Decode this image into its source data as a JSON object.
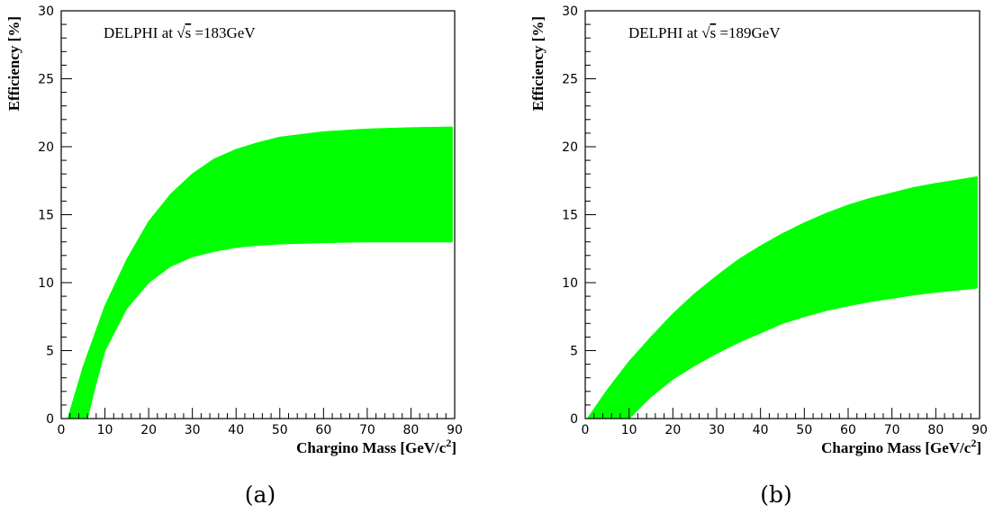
{
  "chart_data": [
    {
      "type": "area",
      "caption": "(a)",
      "annotation": "DELPHI at √s =183GeV",
      "annotation_parts": {
        "pre": "DELPHI at ",
        "sqrt": "√",
        "s": "s",
        "post": " =183GeV"
      },
      "xlabel": "Chargino Mass [GeV/c2]",
      "xlabel_parts": {
        "main": "Chargino Mass [GeV/c",
        "sup": "2",
        "end": "]"
      },
      "ylabel": "Efficiency [%]",
      "xlim": [
        0,
        90
      ],
      "ylim": [
        0,
        30
      ],
      "xticks": [
        0,
        10,
        20,
        30,
        40,
        50,
        60,
        70,
        80,
        90
      ],
      "yticks": [
        0,
        5,
        10,
        15,
        20,
        25,
        30
      ],
      "band_color": "#00ff00",
      "series": [
        {
          "x": [
            1.5,
            5,
            10,
            15,
            20,
            25,
            30,
            35,
            40,
            45,
            50,
            55,
            60,
            70,
            80,
            89.5
          ],
          "values": [
            0,
            3.8,
            8.3,
            11.7,
            14.5,
            16.5,
            18,
            19.1,
            19.8,
            20.3,
            20.7,
            20.9,
            21.1,
            21.3,
            21.4,
            21.45
          ]
        },
        {
          "x": [
            6,
            8,
            10,
            15,
            20,
            25,
            30,
            35,
            40,
            45,
            50,
            55,
            60,
            70,
            80,
            89.5
          ],
          "values": [
            0,
            2.6,
            5,
            8.1,
            10,
            11.2,
            11.9,
            12.3,
            12.6,
            12.75,
            12.85,
            12.9,
            12.95,
            13,
            13,
            13
          ]
        }
      ]
    },
    {
      "type": "area",
      "caption": "(b)",
      "annotation": "DELPHI at √s =189GeV",
      "annotation_parts": {
        "pre": "DELPHI at ",
        "sqrt": "√",
        "s": "s",
        "post": " =189GeV"
      },
      "xlabel": "Chargino Mass [GeV/c2]",
      "xlabel_parts": {
        "main": "Chargino Mass [GeV/c",
        "sup": "2",
        "end": "]"
      },
      "ylabel": "Efficiency [%]",
      "xlim": [
        0,
        90
      ],
      "ylim": [
        0,
        30
      ],
      "xticks": [
        0,
        10,
        20,
        30,
        40,
        50,
        60,
        70,
        80,
        90
      ],
      "yticks": [
        0,
        5,
        10,
        15,
        20,
        25,
        30
      ],
      "band_color": "#00ff00",
      "series": [
        {
          "x": [
            0.5,
            5,
            10,
            15,
            20,
            25,
            30,
            35,
            40,
            45,
            50,
            55,
            60,
            65,
            70,
            75,
            80,
            85,
            89.5
          ],
          "values": [
            0,
            2.1,
            4.2,
            6,
            7.7,
            9.2,
            10.5,
            11.7,
            12.7,
            13.6,
            14.4,
            15.1,
            15.7,
            16.2,
            16.6,
            17,
            17.3,
            17.55,
            17.8
          ]
        },
        {
          "x": [
            10,
            15,
            20,
            25,
            30,
            35,
            40,
            45,
            50,
            55,
            60,
            65,
            70,
            75,
            80,
            85,
            89.5
          ],
          "values": [
            0,
            1.6,
            2.9,
            3.9,
            4.8,
            5.6,
            6.3,
            7,
            7.5,
            7.95,
            8.3,
            8.6,
            8.85,
            9.1,
            9.3,
            9.45,
            9.6
          ]
        }
      ]
    }
  ]
}
